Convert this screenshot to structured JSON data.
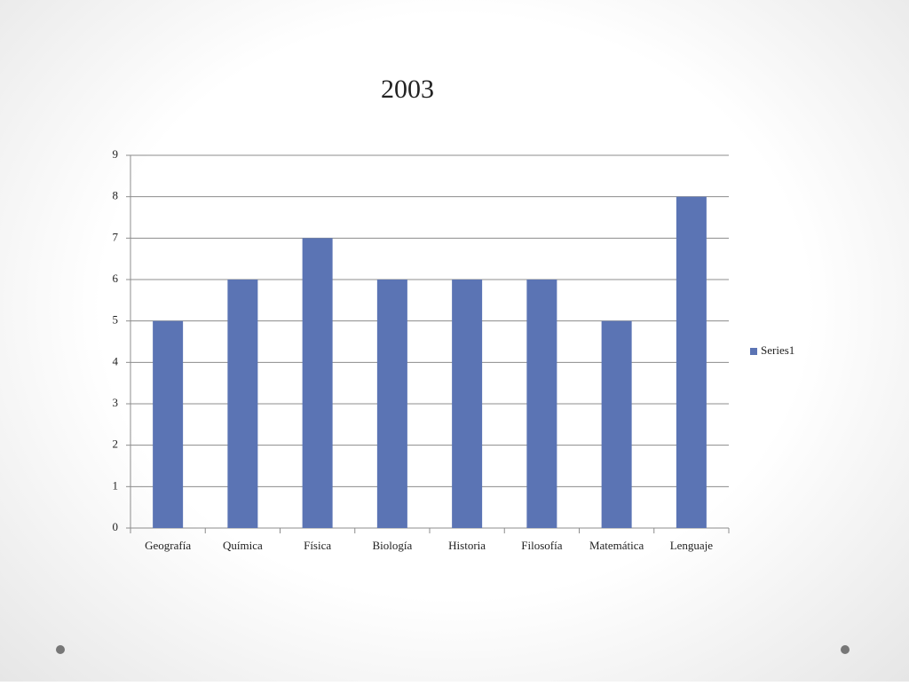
{
  "chart_data": {
    "type": "bar",
    "title": "2003",
    "categories": [
      "Geografía",
      "Química",
      "Física",
      "Biología",
      "Historia",
      "Filosofía",
      "Matemática",
      "Lenguaje"
    ],
    "series": [
      {
        "name": "Series1",
        "color": "#5b74b4",
        "values": [
          5,
          6,
          7,
          6,
          6,
          6,
          5,
          8
        ]
      }
    ],
    "ylim": [
      0,
      9
    ],
    "yticks": [
      0,
      1,
      2,
      3,
      4,
      5,
      6,
      7,
      8,
      9
    ],
    "grid": true,
    "legend": "right"
  }
}
